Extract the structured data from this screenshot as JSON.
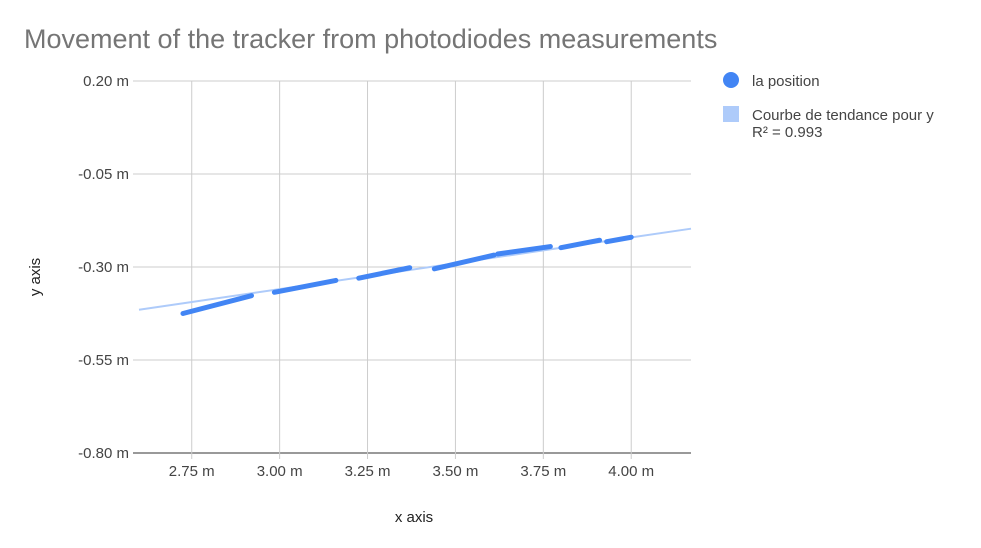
{
  "chart_data": {
    "type": "scatter",
    "title": "Movement of the tracker from photodiodes measurements",
    "xlabel": "x axis",
    "ylabel": "y axis",
    "xlim": [
      2.6,
      4.17
    ],
    "ylim": [
      -0.8,
      0.2
    ],
    "x_ticks": [
      {
        "value": 2.75,
        "label": "2.75 m"
      },
      {
        "value": 3.0,
        "label": "3.00 m"
      },
      {
        "value": 3.25,
        "label": "3.25 m"
      },
      {
        "value": 3.5,
        "label": "3.50 m"
      },
      {
        "value": 3.75,
        "label": "3.75 m"
      },
      {
        "value": 4.0,
        "label": "4.00 m"
      }
    ],
    "y_ticks": [
      {
        "value": 0.2,
        "label": "0.20 m"
      },
      {
        "value": -0.05,
        "label": "-0.05 m"
      },
      {
        "value": -0.3,
        "label": "-0.30 m"
      },
      {
        "value": -0.55,
        "label": "-0.55 m"
      },
      {
        "value": -0.8,
        "label": "-0.80 m"
      }
    ],
    "grid": true,
    "legend_position": "right",
    "series": [
      {
        "name": "la position",
        "color": "#4285f4",
        "segments": [
          {
            "x": [
              2.725,
              2.92
            ],
            "y": [
              -0.425,
              -0.377
            ]
          },
          {
            "x": [
              2.985,
              3.16
            ],
            "y": [
              -0.368,
              -0.336
            ]
          },
          {
            "x": [
              3.225,
              3.37
            ],
            "y": [
              -0.33,
              -0.302
            ]
          },
          {
            "x": [
              3.44,
              3.61
            ],
            "y": [
              -0.305,
              -0.268
            ]
          },
          {
            "x": [
              3.62,
              3.77
            ],
            "y": [
              -0.265,
              -0.245
            ]
          },
          {
            "x": [
              3.8,
              3.91
            ],
            "y": [
              -0.248,
              -0.228
            ]
          },
          {
            "x": [
              3.93,
              4.0
            ],
            "y": [
              -0.232,
              -0.22
            ]
          }
        ]
      }
    ],
    "trendline": {
      "name": "Courbe de tendance pour y",
      "r2_label": "R² = 0.993",
      "color": "#aecbfa",
      "x": [
        2.6,
        4.17
      ],
      "y": [
        -0.415,
        -0.197
      ]
    }
  }
}
